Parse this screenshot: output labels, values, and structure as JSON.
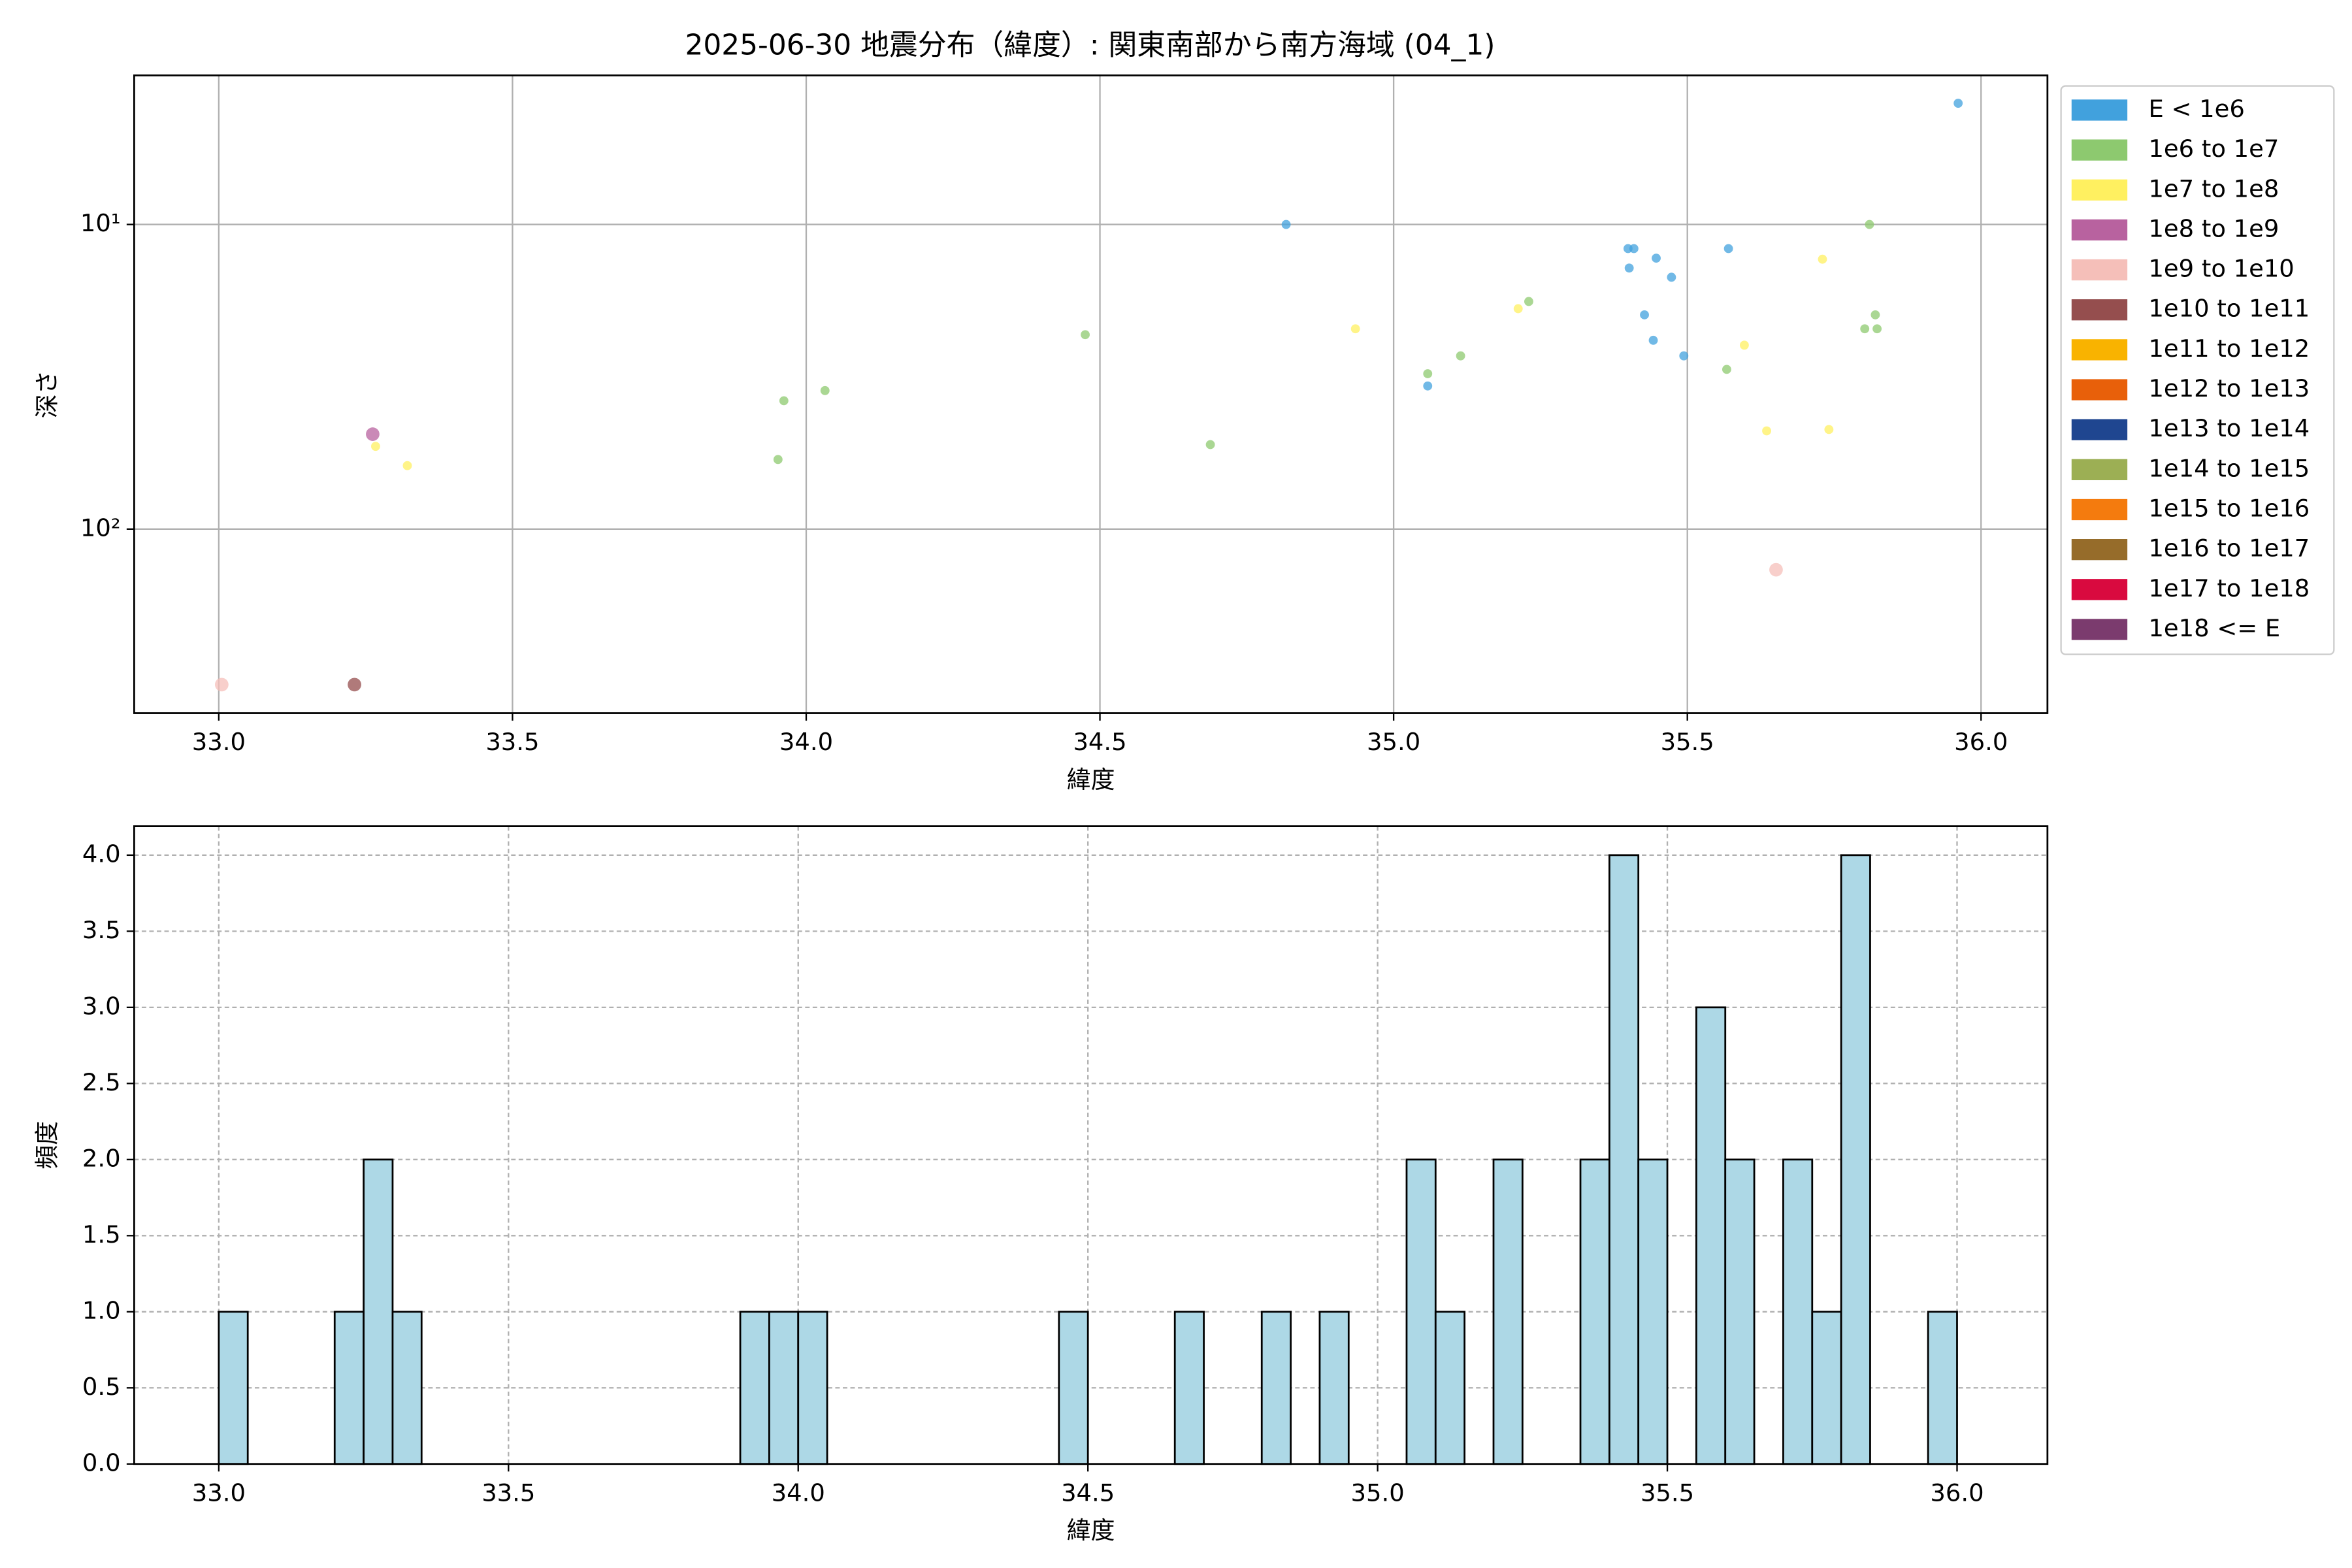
{
  "chart_data": [
    {
      "type": "scatter",
      "title": "2025-06-30 地震分布（緯度）: 関東南部から南方海域 (04_1)",
      "x_label": "緯度",
      "y_label": "深さ",
      "xlim": [
        32.856,
        36.113
      ],
      "xticks": [
        {
          "value": 33,
          "label": "33.0"
        },
        {
          "value": 33.5,
          "label": "33.5"
        },
        {
          "value": 34,
          "label": "34.0"
        },
        {
          "value": 34.5,
          "label": "34.5"
        },
        {
          "value": 35,
          "label": "35.0"
        },
        {
          "value": 35.5,
          "label": "35.5"
        },
        {
          "value": 36,
          "label": "36.0"
        }
      ],
      "ylim": [
        402,
        3.24
      ],
      "log_y": true,
      "yticks": [
        {
          "value": 10,
          "label": "10¹"
        },
        {
          "value": 100,
          "label": "10²"
        }
      ],
      "grid": true,
      "grid_style": "solid",
      "legend": "outside-right",
      "series": [
        {
          "name": "E < 1e6",
          "color": "#41a1dd",
          "x": [
            35.961,
            34.817,
            35.399,
            35.409,
            35.401,
            35.447,
            35.473,
            35.57,
            35.427,
            35.442,
            35.494,
            35.058
          ],
          "values": [
            4.0,
            10,
            12.0,
            12.0,
            13.9,
            12.9,
            14.9,
            12.0,
            19.8,
            24.0,
            27.0,
            33.9
          ]
        },
        {
          "name": "1e6 to 1e7",
          "color": "#8dc96f",
          "x": [
            35.81,
            34.475,
            35.23,
            35.82,
            35.802,
            35.823,
            35.114,
            35.058,
            35.567,
            33.962,
            34.032,
            33.952,
            34.688
          ],
          "values": [
            10,
            23.0,
            17.9,
            19.8,
            22.0,
            22.0,
            27.0,
            30.9,
            29.9,
            37.9,
            35.1,
            59.1,
            52.8
          ]
        },
        {
          "name": "1e7 to 1e8",
          "color": "#fff060",
          "x": [
            35.73,
            34.935,
            35.212,
            35.597,
            35.635,
            35.741,
            33.267,
            33.321
          ],
          "values": [
            13.0,
            22.0,
            18.9,
            24.9,
            47.6,
            47.1,
            53.5,
            61.9
          ]
        },
        {
          "name": "1e8 to 1e9",
          "color": "#b8629f",
          "x": [
            33.262
          ],
          "values": [
            48.8
          ]
        },
        {
          "name": "1e9 to 1e10",
          "color": "#f5bfb9",
          "x": [
            35.651,
            33.005
          ],
          "values": [
            136,
            324
          ]
        },
        {
          "name": "1e10 to 1e11",
          "color": "#954e4e",
          "x": [
            33.231
          ],
          "values": [
            324
          ]
        },
        {
          "name": "1e11 to 1e12",
          "color": "#f9b300",
          "x": [],
          "values": []
        },
        {
          "name": "1e12 to 1e13",
          "color": "#e8600a",
          "x": [],
          "values": []
        },
        {
          "name": "1e13 to 1e14",
          "color": "#1f4690",
          "x": [],
          "values": []
        },
        {
          "name": "1e14 to 1e15",
          "color": "#9caf54",
          "x": [],
          "values": []
        },
        {
          "name": "1e15 to 1e16",
          "color": "#f47b0e",
          "x": [],
          "values": []
        },
        {
          "name": "1e16 to 1e17",
          "color": "#966c2a",
          "x": [],
          "values": []
        },
        {
          "name": "1e17 to 1e18",
          "color": "#d90a3f",
          "x": [],
          "values": []
        },
        {
          "name": "1e18 <= E",
          "color": "#7b3b6e",
          "x": [],
          "values": []
        }
      ]
    },
    {
      "type": "histogram",
      "x_label": "緯度",
      "y_label": "頻度",
      "color": "#add8e6",
      "edgecolor": "#000000",
      "xlim": [
        32.854,
        36.156
      ],
      "xticks": [
        {
          "value": 33,
          "label": "33.0"
        },
        {
          "value": 33.5,
          "label": "33.5"
        },
        {
          "value": 34,
          "label": "34.0"
        },
        {
          "value": 34.5,
          "label": "34.5"
        },
        {
          "value": 35,
          "label": "35.0"
        },
        {
          "value": 35.5,
          "label": "35.5"
        },
        {
          "value": 36,
          "label": "36.0"
        }
      ],
      "ylim": [
        0,
        4.19
      ],
      "yticks": [
        {
          "value": 0,
          "label": "0.0"
        },
        {
          "value": 0.5,
          "label": "0.5"
        },
        {
          "value": 1,
          "label": "1.0"
        },
        {
          "value": 1.5,
          "label": "1.5"
        },
        {
          "value": 2,
          "label": "2.0"
        },
        {
          "value": 2.5,
          "label": "2.5"
        },
        {
          "value": 3,
          "label": "3.0"
        },
        {
          "value": 3.5,
          "label": "3.5"
        },
        {
          "value": 4,
          "label": "4.0"
        }
      ],
      "grid": true,
      "grid_style": "dashed",
      "bins": [
        33,
        33.05,
        33.1,
        33.15,
        33.2,
        33.25,
        33.3,
        33.35,
        33.4,
        33.45,
        33.5,
        33.55,
        33.6,
        33.65,
        33.7,
        33.75,
        33.8,
        33.85,
        33.9,
        33.95,
        34,
        34.05,
        34.1,
        34.15,
        34.2,
        34.25,
        34.3,
        34.35,
        34.4,
        34.45,
        34.5,
        34.55,
        34.6,
        34.65,
        34.7,
        34.75,
        34.8,
        34.85,
        34.9,
        34.95,
        35,
        35.05,
        35.1,
        35.15,
        35.2,
        35.25,
        35.3,
        35.35,
        35.4,
        35.45,
        35.5,
        35.55,
        35.6,
        35.65,
        35.7,
        35.75,
        35.8,
        35.85,
        35.9,
        35.95,
        36
      ],
      "values": [
        1,
        0,
        0,
        0,
        1,
        2,
        1,
        0,
        0,
        0,
        0,
        0,
        0,
        0,
        0,
        0,
        0,
        0,
        1,
        1,
        1,
        0,
        0,
        0,
        0,
        0,
        0,
        0,
        0,
        1,
        0,
        0,
        0,
        1,
        0,
        0,
        1,
        0,
        1,
        0,
        0,
        2,
        1,
        0,
        2,
        0,
        0,
        2,
        4,
        2,
        0,
        3,
        2,
        0,
        2,
        1,
        4,
        0,
        0,
        1
      ]
    }
  ]
}
